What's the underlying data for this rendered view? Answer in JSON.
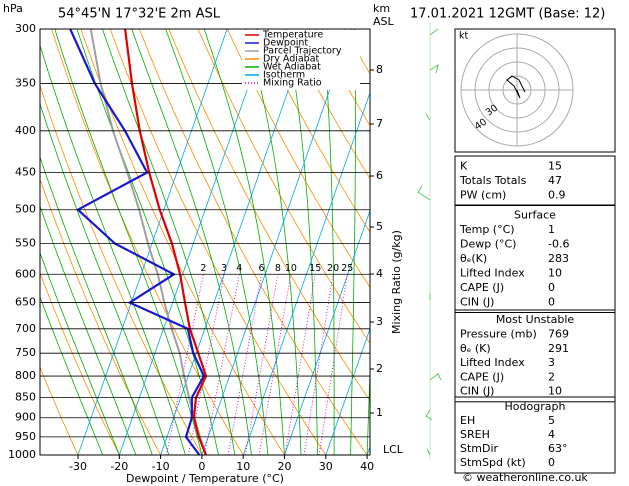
{
  "chart_data": {
    "type": "skew-t",
    "title": "54°45'N  17°32'E  2m  ASL",
    "y_unit_label": "hPa",
    "km_label": "km",
    "km_label2": "ASL",
    "xlabel": "Dewpoint / Temperature (°C)",
    "y2label": "Mixing Ratio (g/kg)",
    "log_y": true,
    "xlim": [
      -39.2,
      40.7
    ],
    "ylim": [
      1000,
      300
    ],
    "skew": 0.35,
    "xticks": [
      -30,
      -20,
      -10,
      0,
      10,
      20,
      30,
      40
    ],
    "yticks": [
      300,
      350,
      400,
      450,
      500,
      550,
      600,
      650,
      700,
      750,
      800,
      850,
      900,
      950,
      1000
    ],
    "km_ticks": [
      1,
      2,
      3,
      4,
      5,
      6,
      7,
      8
    ],
    "lcl_label": "LCL",
    "mixing_ratio_labels": [
      2,
      3,
      4,
      6,
      8,
      10,
      15,
      20,
      25
    ],
    "pressure": [
      1000,
      950,
      900,
      850,
      800,
      750,
      700,
      650,
      600,
      550,
      500,
      450,
      400,
      350,
      300
    ],
    "series": [
      {
        "name": "Temperature",
        "color": "#e00000",
        "values": [
          1,
          -2.3,
          -5.1,
          -6.3,
          -5.7,
          -9.5,
          -13.6,
          -17.0,
          -20.6,
          -25.2,
          -31.0,
          -36.7,
          -42.5,
          -48.4,
          -54.7
        ]
      },
      {
        "name": "Dewpoint",
        "color": "#1818d0",
        "values": [
          -0.6,
          -5.4,
          -5.6,
          -7.3,
          -6.2,
          -10.7,
          -14.1,
          -30.4,
          -22.1,
          -39.0,
          -50.8,
          -37.2,
          -46.1,
          -57.4,
          -68.0
        ]
      },
      {
        "name": "Parcel Trajectory",
        "color": "#a0a0a0",
        "values": [
          1,
          -2,
          -5,
          -8,
          -11,
          -14,
          -18,
          -22,
          -26,
          -31,
          -36,
          -42,
          -49,
          -56,
          -63
        ]
      }
    ],
    "background_lines": [
      {
        "name": "Dry Adiabat",
        "color": "#ff8c00"
      },
      {
        "name": "Wet Adiabat",
        "color": "#00b000"
      },
      {
        "name": "Isotherm",
        "color": "#00a8e8"
      },
      {
        "name": "Mixing Ratio",
        "color": "#e000e0"
      }
    ]
  },
  "date_header": "17.01.2021 12GMT (Base: 12)",
  "hodograph": {
    "unit": "kt",
    "ring_labels": [
      "40",
      "30"
    ]
  },
  "indices": {
    "rows": [
      [
        "K",
        "15"
      ],
      [
        "Totals Totals",
        "47"
      ],
      [
        "PW (cm)",
        "0.9"
      ]
    ]
  },
  "surface": {
    "title": "Surface",
    "rows": [
      [
        "Temp (°C)",
        "1"
      ],
      [
        "Dewp (°C)",
        "-0.6"
      ],
      [
        "θₑ(K)",
        "283"
      ],
      [
        "Lifted Index",
        "10"
      ],
      [
        "CAPE (J)",
        "0"
      ],
      [
        "CIN (J)",
        "0"
      ]
    ]
  },
  "most_unstable": {
    "title": "Most Unstable",
    "rows": [
      [
        "Pressure (mb)",
        "769"
      ],
      [
        "θₑ (K)",
        "291"
      ],
      [
        "Lifted Index",
        "3"
      ],
      [
        "CAPE (J)",
        "2"
      ],
      [
        "CIN (J)",
        "10"
      ]
    ]
  },
  "hodograph_table": {
    "title": "Hodograph",
    "rows": [
      [
        "EH",
        "5"
      ],
      [
        "SREH",
        "4"
      ],
      [
        "StmDir",
        "63°"
      ],
      [
        "StmSpd (kt)",
        "0"
      ]
    ]
  },
  "footer": "© weatheronline.co.uk"
}
